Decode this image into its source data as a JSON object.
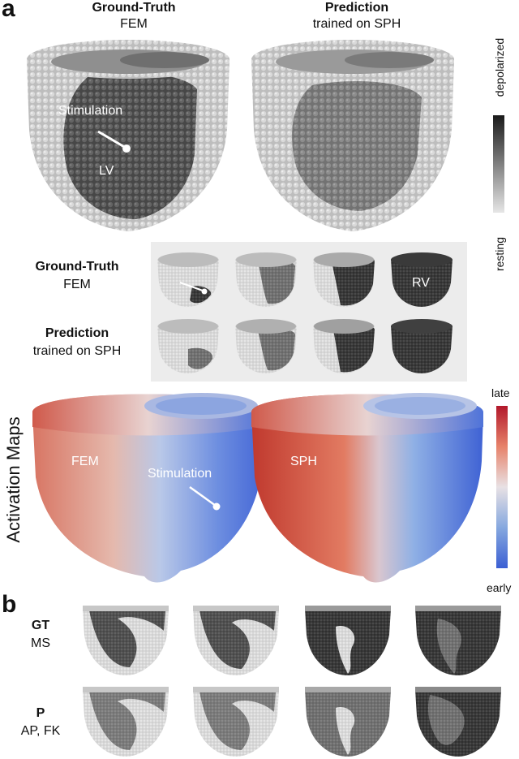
{
  "panel_a": {
    "letter": "a",
    "headers": {
      "gt_title": "Ground-Truth",
      "gt_sub": "FEM",
      "pred_title": "Prediction",
      "pred_sub": "trained on SPH"
    },
    "overlay": {
      "stimulation": "Stimulation",
      "lv": "LV",
      "rv": "RV"
    },
    "grayscale_bar": {
      "top": "depolarized",
      "bottom": "resting"
    },
    "rows": {
      "gt_title": "Ground-Truth",
      "gt_sub": "FEM",
      "pred_title": "Prediction",
      "pred_sub": "trained on SPH"
    },
    "activation": {
      "axis_label": "Activation Maps",
      "fem": "FEM",
      "sph": "SPH",
      "stimulation": "Stimulation",
      "bar_top": "late",
      "bar_bottom": "early"
    }
  },
  "panel_b": {
    "letter": "b",
    "gt_title": "GT",
    "gt_sub": "MS",
    "p_title": "P",
    "p_sub": "AP, FK"
  }
}
